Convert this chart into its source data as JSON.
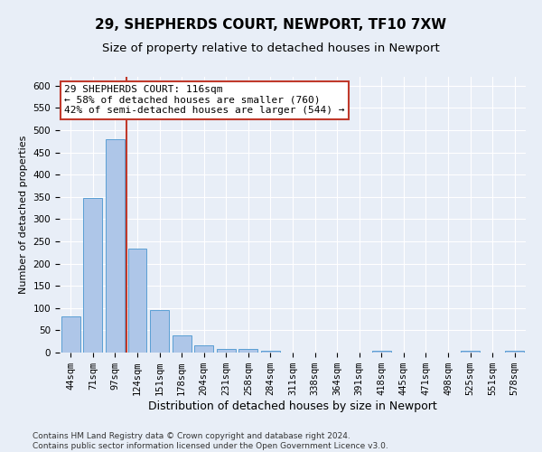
{
  "title1": "29, SHEPHERDS COURT, NEWPORT, TF10 7XW",
  "title2": "Size of property relative to detached houses in Newport",
  "xlabel": "Distribution of detached houses by size in Newport",
  "ylabel": "Number of detached properties",
  "categories": [
    "44sqm",
    "71sqm",
    "97sqm",
    "124sqm",
    "151sqm",
    "178sqm",
    "204sqm",
    "231sqm",
    "258sqm",
    "284sqm",
    "311sqm",
    "338sqm",
    "364sqm",
    "391sqm",
    "418sqm",
    "445sqm",
    "471sqm",
    "498sqm",
    "525sqm",
    "551sqm",
    "578sqm"
  ],
  "values": [
    82,
    348,
    479,
    234,
    96,
    38,
    16,
    8,
    8,
    5,
    0,
    0,
    0,
    0,
    5,
    0,
    0,
    0,
    5,
    0,
    5
  ],
  "bar_color": "#aec6e8",
  "bar_edge_color": "#5a9fd4",
  "vline_color": "#c0392b",
  "vline_x": 2.5,
  "annotation_text": "29 SHEPHERDS COURT: 116sqm\n← 58% of detached houses are smaller (760)\n42% of semi-detached houses are larger (544) →",
  "annotation_box_color": "#ffffff",
  "annotation_box_edge_color": "#c0392b",
  "ylim": [
    0,
    620
  ],
  "yticks": [
    0,
    50,
    100,
    150,
    200,
    250,
    300,
    350,
    400,
    450,
    500,
    550,
    600
  ],
  "bg_color": "#e8eef7",
  "plot_bg_color": "#e8eef7",
  "footer": "Contains HM Land Registry data © Crown copyright and database right 2024.\nContains public sector information licensed under the Open Government Licence v3.0.",
  "title1_fontsize": 11,
  "title2_fontsize": 9.5,
  "xlabel_fontsize": 9,
  "ylabel_fontsize": 8,
  "tick_fontsize": 7.5,
  "annotation_fontsize": 8,
  "footer_fontsize": 6.5
}
